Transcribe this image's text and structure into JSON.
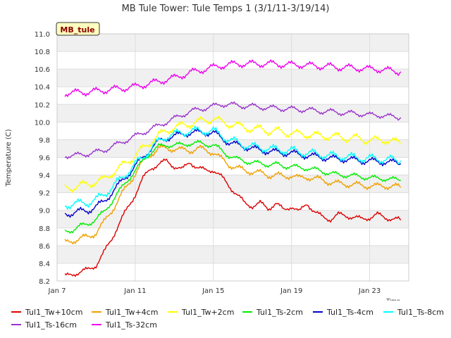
{
  "chart_data": {
    "type": "line",
    "title": "MB Tule Tower: Tule Temps 1 (3/1/11-3/19/14)",
    "xlabel": "Time",
    "ylabel": "Temperature (C)",
    "xlim": [
      7.0,
      25.0
    ],
    "ylim": [
      8.2,
      11.0
    ],
    "xticks": [
      {
        "x": 7,
        "label": "Jan 7"
      },
      {
        "x": 11,
        "label": "Jan 11"
      },
      {
        "x": 15,
        "label": "Jan 15"
      },
      {
        "x": 19,
        "label": "Jan 19"
      },
      {
        "x": 23,
        "label": "Jan 23"
      }
    ],
    "yticks": [
      8.2,
      8.4,
      8.6,
      8.8,
      9.0,
      9.2,
      9.4,
      9.6,
      9.8,
      10.0,
      10.2,
      10.4,
      10.6,
      10.8,
      11.0
    ],
    "station_badge": "MB_tule",
    "series": [
      {
        "name": "Tul1_Tw+10cm",
        "color": "#dd0000",
        "x": [
          7.4,
          7.8,
          8.2,
          8.6,
          9.0,
          9.4,
          9.8,
          10.2,
          10.6,
          11.0,
          11.4,
          11.8,
          12.2,
          12.6,
          13.0,
          13.4,
          13.8,
          14.2,
          14.6,
          15.0,
          15.4,
          15.8,
          16.2,
          16.6,
          17.0,
          17.4,
          17.8,
          18.2,
          18.6,
          19.0,
          19.4,
          19.8,
          20.2,
          20.6,
          21.0,
          21.4,
          21.8,
          22.2,
          22.6,
          23.0,
          23.4,
          23.8,
          24.2,
          24.6
        ],
        "y": [
          8.25,
          8.28,
          8.3,
          8.33,
          8.38,
          8.52,
          8.68,
          8.86,
          9.02,
          9.18,
          9.36,
          9.48,
          9.52,
          9.56,
          9.5,
          9.46,
          9.55,
          9.48,
          9.45,
          9.46,
          9.38,
          9.28,
          9.18,
          9.08,
          9.05,
          9.08,
          9.02,
          9.08,
          9.0,
          9.05,
          8.98,
          9.08,
          8.98,
          8.92,
          8.9,
          8.95,
          8.94,
          8.92,
          8.9,
          8.92,
          8.95,
          8.92,
          8.9,
          8.89
        ]
      },
      {
        "name": "Tul1_Tw+4cm",
        "color": "#f0a000",
        "x": [
          7.4,
          7.8,
          8.2,
          8.6,
          9.0,
          9.4,
          9.8,
          10.2,
          10.6,
          11.0,
          11.4,
          11.8,
          12.2,
          12.6,
          13.0,
          13.4,
          13.8,
          14.2,
          14.6,
          15.0,
          15.4,
          15.8,
          16.2,
          16.6,
          17.0,
          17.4,
          17.8,
          18.2,
          18.6,
          19.0,
          19.4,
          19.8,
          20.2,
          20.6,
          21.0,
          21.4,
          21.8,
          22.2,
          22.6,
          23.0,
          23.4,
          23.8,
          24.2,
          24.6
        ],
        "y": [
          8.63,
          8.66,
          8.68,
          8.7,
          8.75,
          8.86,
          9.0,
          9.14,
          9.28,
          9.42,
          9.55,
          9.64,
          9.7,
          9.7,
          9.7,
          9.68,
          9.68,
          9.7,
          9.68,
          9.66,
          9.58,
          9.52,
          9.48,
          9.45,
          9.44,
          9.42,
          9.4,
          9.4,
          9.38,
          9.4,
          9.36,
          9.38,
          9.36,
          9.34,
          9.32,
          9.3,
          9.3,
          9.29,
          9.28,
          9.28,
          9.27,
          9.28,
          9.27,
          9.26
        ]
      },
      {
        "name": "Tul1_Tw+2cm",
        "color": "#ffff00",
        "x": [
          7.4,
          7.8,
          8.2,
          8.6,
          9.0,
          9.4,
          9.8,
          10.2,
          10.6,
          11.0,
          11.4,
          11.8,
          12.2,
          12.6,
          13.0,
          13.4,
          13.8,
          14.2,
          14.6,
          15.0,
          15.4,
          15.8,
          16.2,
          16.6,
          17.0,
          17.4,
          17.8,
          18.2,
          18.6,
          19.0,
          19.4,
          19.8,
          20.2,
          20.6,
          21.0,
          21.4,
          21.8,
          22.2,
          22.6,
          23.0,
          23.4,
          23.8,
          24.2,
          24.6
        ],
        "y": [
          9.25,
          9.26,
          9.28,
          9.3,
          9.32,
          9.35,
          9.42,
          9.48,
          9.55,
          9.62,
          9.7,
          9.78,
          9.85,
          9.9,
          9.94,
          9.96,
          9.98,
          10.0,
          10.02,
          10.04,
          10.0,
          9.98,
          9.96,
          9.94,
          9.92,
          9.92,
          9.9,
          9.9,
          9.88,
          9.88,
          9.86,
          9.86,
          9.85,
          9.84,
          9.84,
          9.83,
          9.82,
          9.82,
          9.8,
          9.8,
          9.79,
          9.8,
          9.78,
          9.76
        ]
      },
      {
        "name": "Tul1_Ts-2cm",
        "color": "#00ee00",
        "x": [
          7.4,
          7.8,
          8.2,
          8.6,
          9.0,
          9.4,
          9.8,
          10.2,
          10.6,
          11.0,
          11.4,
          11.8,
          12.2,
          12.6,
          13.0,
          13.4,
          13.8,
          14.2,
          14.6,
          15.0,
          15.4,
          15.8,
          16.2,
          16.6,
          17.0,
          17.4,
          17.8,
          18.2,
          18.6,
          19.0,
          19.4,
          19.8,
          20.2,
          20.6,
          21.0,
          21.4,
          21.8,
          22.2,
          22.6,
          23.0,
          23.4,
          23.8,
          24.2,
          24.6
        ],
        "y": [
          8.76,
          8.78,
          8.82,
          8.85,
          8.9,
          8.98,
          9.1,
          9.22,
          9.34,
          9.45,
          9.56,
          9.66,
          9.72,
          9.74,
          9.74,
          9.74,
          9.76,
          9.76,
          9.75,
          9.74,
          9.68,
          9.62,
          9.58,
          9.56,
          9.54,
          9.53,
          9.52,
          9.52,
          9.5,
          9.5,
          9.48,
          9.48,
          9.46,
          9.44,
          9.42,
          9.4,
          9.4,
          9.39,
          9.38,
          9.37,
          9.36,
          9.36,
          9.35,
          9.34
        ]
      },
      {
        "name": "Tul1_Ts-4cm",
        "color": "#0000cc",
        "x": [
          7.4,
          7.8,
          8.2,
          8.6,
          9.0,
          9.4,
          9.8,
          10.2,
          10.6,
          11.0,
          11.4,
          11.8,
          12.2,
          12.6,
          13.0,
          13.4,
          13.8,
          14.2,
          14.6,
          15.0,
          15.4,
          15.8,
          16.2,
          16.6,
          17.0,
          17.4,
          17.8,
          18.2,
          18.6,
          19.0,
          19.4,
          19.8,
          20.2,
          20.6,
          21.0,
          21.4,
          21.8,
          22.2,
          22.6,
          23.0,
          23.4,
          23.8,
          24.2,
          24.6
        ],
        "y": [
          8.96,
          8.97,
          8.99,
          9.0,
          9.04,
          9.1,
          9.2,
          9.3,
          9.4,
          9.5,
          9.6,
          9.7,
          9.78,
          9.82,
          9.84,
          9.86,
          9.88,
          9.88,
          9.88,
          9.88,
          9.82,
          9.77,
          9.74,
          9.72,
          9.7,
          9.68,
          9.67,
          9.66,
          9.65,
          9.65,
          9.63,
          9.62,
          9.61,
          9.6,
          9.59,
          9.58,
          9.58,
          9.57,
          9.56,
          9.56,
          9.55,
          9.55,
          9.54,
          9.53
        ]
      },
      {
        "name": "Tul1_Ts-8cm",
        "color": "#00ffff",
        "x": [
          7.4,
          7.8,
          8.2,
          8.6,
          9.0,
          9.4,
          9.8,
          10.2,
          10.6,
          11.0,
          11.4,
          11.8,
          12.2,
          12.6,
          13.0,
          13.4,
          13.8,
          14.2,
          14.6,
          15.0,
          15.4,
          15.8,
          16.2,
          16.6,
          17.0,
          17.4,
          17.8,
          18.2,
          18.6,
          19.0,
          19.4,
          19.8,
          20.2,
          20.6,
          21.0,
          21.4,
          21.8,
          22.2,
          22.6,
          23.0,
          23.4,
          23.8,
          24.2,
          24.6
        ],
        "y": [
          9.06,
          9.07,
          9.08,
          9.09,
          9.12,
          9.18,
          9.26,
          9.34,
          9.43,
          9.52,
          9.6,
          9.7,
          9.78,
          9.84,
          9.86,
          9.88,
          9.9,
          9.9,
          9.9,
          9.9,
          9.85,
          9.8,
          9.77,
          9.74,
          9.72,
          9.71,
          9.7,
          9.69,
          9.68,
          9.68,
          9.66,
          9.65,
          9.64,
          9.63,
          9.62,
          9.61,
          9.61,
          9.6,
          9.59,
          9.59,
          9.58,
          9.58,
          9.57,
          9.56
        ]
      },
      {
        "name": "Tul1_Ts-16cm",
        "color": "#9933cc",
        "x": [
          7.4,
          7.8,
          8.2,
          8.6,
          9.0,
          9.4,
          9.8,
          10.2,
          10.6,
          11.0,
          11.4,
          11.8,
          12.2,
          12.6,
          13.0,
          13.4,
          13.8,
          14.2,
          14.6,
          15.0,
          15.4,
          15.8,
          16.2,
          16.6,
          17.0,
          17.4,
          17.8,
          18.2,
          18.6,
          19.0,
          19.4,
          19.8,
          20.2,
          20.6,
          21.0,
          21.4,
          21.8,
          22.2,
          22.6,
          23.0,
          23.4,
          23.8,
          24.2,
          24.6
        ],
        "y": [
          9.62,
          9.62,
          9.63,
          9.64,
          9.66,
          9.68,
          9.72,
          9.76,
          9.8,
          9.84,
          9.88,
          9.92,
          9.96,
          10.0,
          10.04,
          10.08,
          10.12,
          10.14,
          10.16,
          10.18,
          10.2,
          10.2,
          10.19,
          10.18,
          10.18,
          10.17,
          10.16,
          10.16,
          10.15,
          10.15,
          10.14,
          10.14,
          10.13,
          10.12,
          10.12,
          10.11,
          10.1,
          10.1,
          10.09,
          10.08,
          10.08,
          10.07,
          10.06,
          10.05
        ]
      },
      {
        "name": "Tul1_Ts-32cm",
        "color": "#ee00ee",
        "x": [
          7.4,
          7.8,
          8.2,
          8.6,
          9.0,
          9.4,
          9.8,
          10.2,
          10.6,
          11.0,
          11.4,
          11.8,
          12.2,
          12.6,
          13.0,
          13.4,
          13.8,
          14.2,
          14.6,
          15.0,
          15.4,
          15.8,
          16.2,
          16.6,
          17.0,
          17.4,
          17.8,
          18.2,
          18.6,
          19.0,
          19.4,
          19.8,
          20.2,
          20.6,
          21.0,
          21.4,
          21.8,
          22.2,
          22.6,
          23.0,
          23.4,
          23.8,
          24.2,
          24.6
        ],
        "y": [
          10.33,
          10.33,
          10.34,
          10.34,
          10.35,
          10.36,
          10.37,
          10.38,
          10.39,
          10.4,
          10.42,
          10.44,
          10.46,
          10.48,
          10.5,
          10.53,
          10.56,
          10.58,
          10.6,
          10.62,
          10.64,
          10.65,
          10.66,
          10.66,
          10.66,
          10.66,
          10.66,
          10.66,
          10.65,
          10.65,
          10.65,
          10.64,
          10.64,
          10.63,
          10.63,
          10.62,
          10.62,
          10.61,
          10.61,
          10.6,
          10.6,
          10.59,
          10.58,
          10.57
        ]
      }
    ]
  }
}
